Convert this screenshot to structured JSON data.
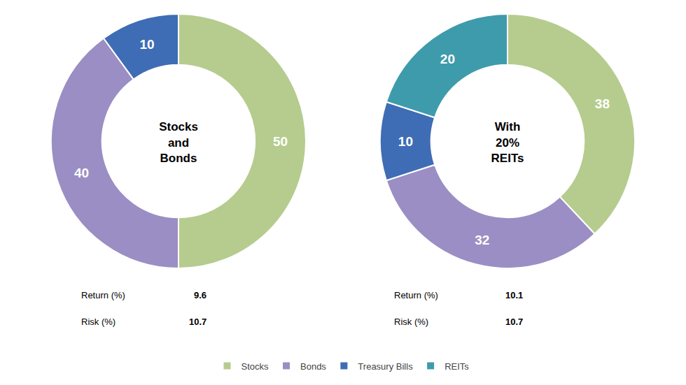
{
  "chart_data": [
    {
      "type": "pie",
      "title": "Stocks\nand\nBonds",
      "categories": [
        "Stocks",
        "Bonds",
        "Treasury Bills"
      ],
      "values": [
        50,
        40,
        10
      ],
      "colors": [
        "#b5cc8e",
        "#9b8ec4",
        "#3f6db5"
      ],
      "data_labels": true,
      "legend": "bottom",
      "annotations": [
        {
          "text": "Return (%)",
          "value": 9.6
        },
        {
          "text": "Risk (%)",
          "value": 10.7
        }
      ]
    },
    {
      "type": "pie",
      "title": "With\n20%\nREITs",
      "categories": [
        "Stocks",
        "Bonds",
        "Treasury Bills",
        "REITs"
      ],
      "values": [
        38,
        32,
        10,
        20
      ],
      "colors": [
        "#b5cc8e",
        "#9b8ec4",
        "#3f6db5",
        "#3e9bab"
      ],
      "data_labels": true,
      "legend": "bottom",
      "annotations": [
        {
          "text": "Return (%)",
          "value": 10.1
        },
        {
          "text": "Risk (%)",
          "value": 10.7
        }
      ]
    }
  ]
}
